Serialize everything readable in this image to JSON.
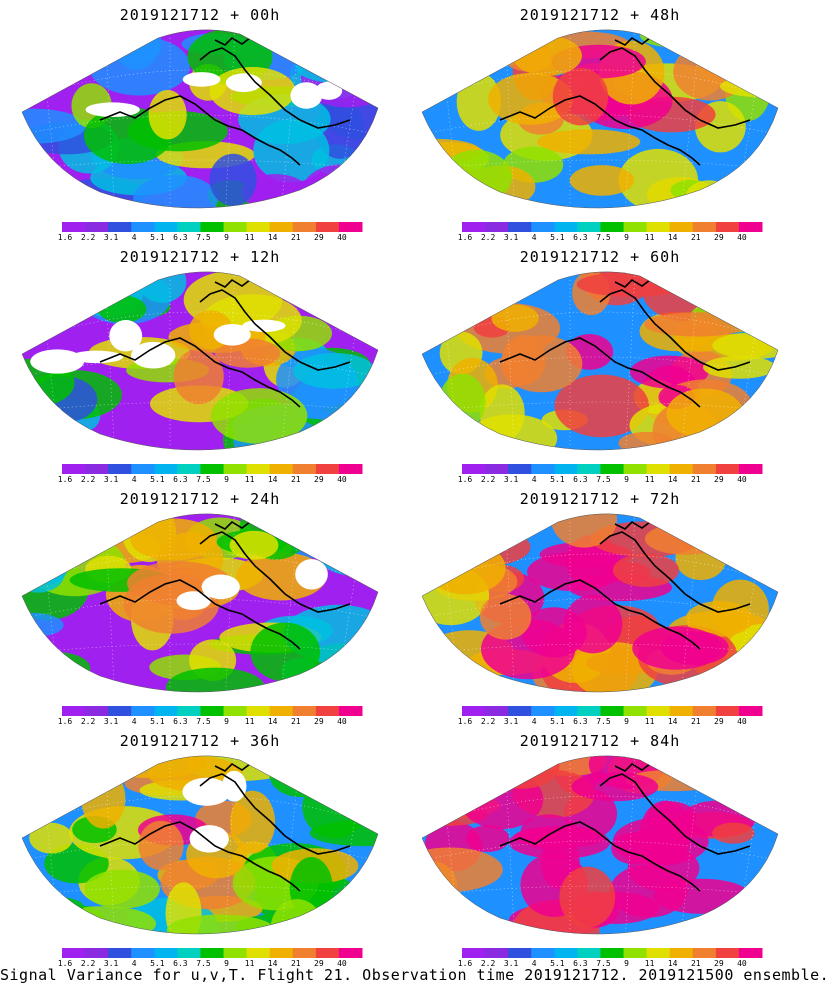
{
  "panels": [
    {
      "title": "2019121712 + 00h",
      "lead_hours": 0
    },
    {
      "title": "2019121712 + 48h",
      "lead_hours": 48
    },
    {
      "title": "2019121712 + 12h",
      "lead_hours": 12
    },
    {
      "title": "2019121712 + 60h",
      "lead_hours": 60
    },
    {
      "title": "2019121712 + 24h",
      "lead_hours": 24
    },
    {
      "title": "2019121712 + 72h",
      "lead_hours": 72
    },
    {
      "title": "2019121712 + 36h",
      "lead_hours": 36
    },
    {
      "title": "2019121712 + 84h",
      "lead_hours": 84
    }
  ],
  "colorbar": {
    "labels": [
      "1.6",
      "2.2",
      "3.1",
      "4",
      "5.1",
      "6.3",
      "7.5",
      "9",
      "11",
      "14",
      "21",
      "29",
      "40"
    ],
    "colors": [
      "#a020f0",
      "#8a2be2",
      "#3050e0",
      "#1e90ff",
      "#00b4f0",
      "#00d0c0",
      "#00c000",
      "#90e000",
      "#e0e000",
      "#f0b000",
      "#f08030",
      "#f04040",
      "#f00090"
    ]
  },
  "footer": "Signal Variance for u,v,T. Flight 21. Observation time 2019121712. 2019121500 ensemble."
}
